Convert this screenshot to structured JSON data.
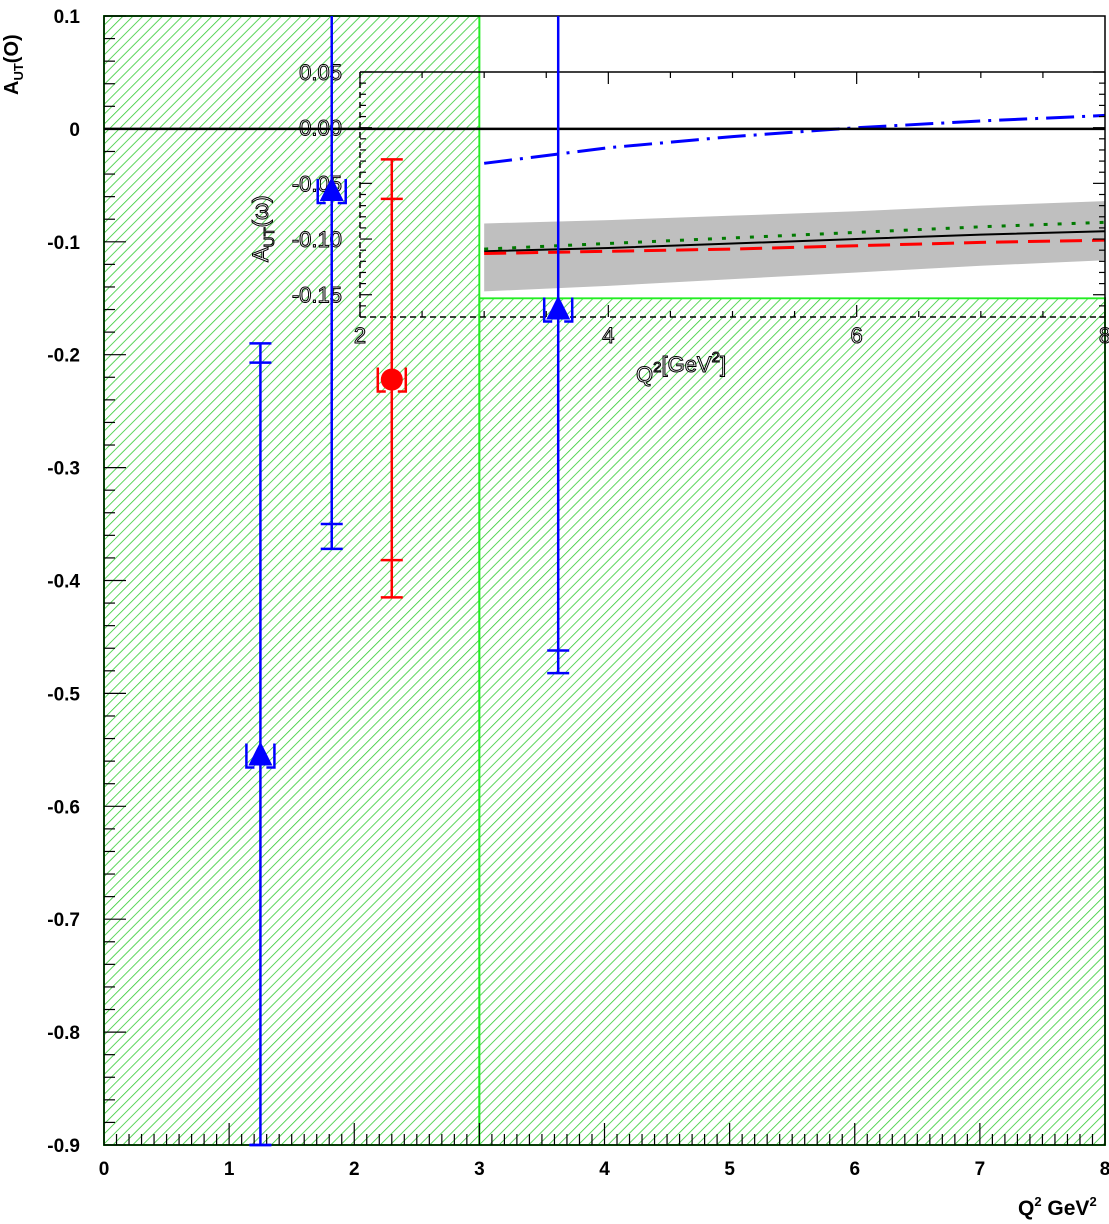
{
  "chart_data": [
    {
      "type": "scatter",
      "title": "",
      "xlabel": "Q",
      "xlabel_sup": "2",
      "xlabel_unit": "GeV",
      "xlabel_unit_sup": "2",
      "ylabel": "A",
      "ylabel_sub": "UT",
      "ylabel_paren": "(O)",
      "xlim": [
        0,
        8
      ],
      "ylim": [
        -0.9,
        0.1
      ],
      "x_ticks": [
        "0",
        "1",
        "2",
        "3",
        "4",
        "5",
        "6",
        "7",
        "8"
      ],
      "y_ticks": [
        "0.1",
        "0",
        "-0.1",
        "-0.2",
        "-0.3",
        "-0.4",
        "-0.5",
        "-0.6",
        "-0.7",
        "-0.8",
        "-0.9"
      ],
      "shaded_regions": [
        {
          "x": [
            0,
            3
          ],
          "y": [
            -0.9,
            0.1
          ],
          "color": "#00cc00"
        },
        {
          "x": [
            3,
            8
          ],
          "y": [
            -0.9,
            -0.15
          ],
          "color": "#00cc00"
        }
      ],
      "zero_line": true,
      "series": [
        {
          "marker": "triangle",
          "color": "#0000ff",
          "points": [
            {
              "x": 1.25,
              "y": -0.555,
              "stat_low": -0.9,
              "stat_high": -0.207,
              "sys_low": -0.9,
              "sys_high": -0.19
            },
            {
              "x": 1.82,
              "y": -0.055,
              "stat_low": -0.35,
              "stat_high": 0.1,
              "sys_low": -0.372,
              "sys_high": 0.1
            },
            {
              "x": 3.63,
              "y": -0.16,
              "stat_low": -0.462,
              "stat_high": 0.1,
              "sys_low": -0.482,
              "sys_high": 0.1
            }
          ]
        },
        {
          "marker": "circle",
          "color": "#ff0000",
          "points": [
            {
              "x": 2.3,
              "y": -0.222,
              "stat_low": -0.382,
              "stat_high": -0.062,
              "sys_low": -0.415,
              "sys_high": -0.027
            }
          ]
        }
      ]
    },
    {
      "type": "line",
      "title": "",
      "xlabel": "Q",
      "xlabel_sup": "2",
      "xlabel_unit": "[GeV",
      "xlabel_unit_sup": "2",
      "xlabel_close": "]",
      "ylabel": "A",
      "ylabel_sub": "UT",
      "ylabel_paren": "(ω)",
      "xlim": [
        2,
        8
      ],
      "ylim": [
        -0.17,
        0.05
      ],
      "x_ticks": [
        "2",
        "4",
        "6",
        "8"
      ],
      "y_ticks": [
        "0.05",
        "0.00",
        "-0.05",
        "-0.10",
        "-0.15"
      ],
      "band": {
        "color": "#bfbfbf",
        "x": [
          3,
          4,
          5,
          6,
          7,
          8
        ],
        "low": [
          -0.147,
          -0.142,
          -0.136,
          -0.13,
          -0.124,
          -0.119
        ],
        "high": [
          -0.086,
          -0.083,
          -0.079,
          -0.075,
          -0.07,
          -0.066
        ]
      },
      "series": [
        {
          "style": "solid",
          "color": "#000000",
          "x": [
            3,
            4,
            5,
            6,
            7,
            8
          ],
          "values": [
            -0.111,
            -0.108,
            -0.104,
            -0.1,
            -0.096,
            -0.093
          ]
        },
        {
          "style": "dotted",
          "color": "#007a00",
          "x": [
            3,
            4,
            5,
            6,
            7,
            8
          ],
          "values": [
            -0.109,
            -0.104,
            -0.099,
            -0.094,
            -0.089,
            -0.085
          ]
        },
        {
          "style": "dashed",
          "color": "#ff0000",
          "x": [
            3,
            4,
            5,
            6,
            7,
            8
          ],
          "values": [
            -0.113,
            -0.111,
            -0.109,
            -0.106,
            -0.103,
            -0.101
          ]
        },
        {
          "style": "dashdot",
          "color": "#0000ff",
          "x": [
            3,
            4,
            5,
            6,
            7,
            8
          ],
          "values": [
            -0.032,
            -0.018,
            -0.008,
            0.0,
            0.006,
            0.011
          ]
        }
      ]
    }
  ]
}
